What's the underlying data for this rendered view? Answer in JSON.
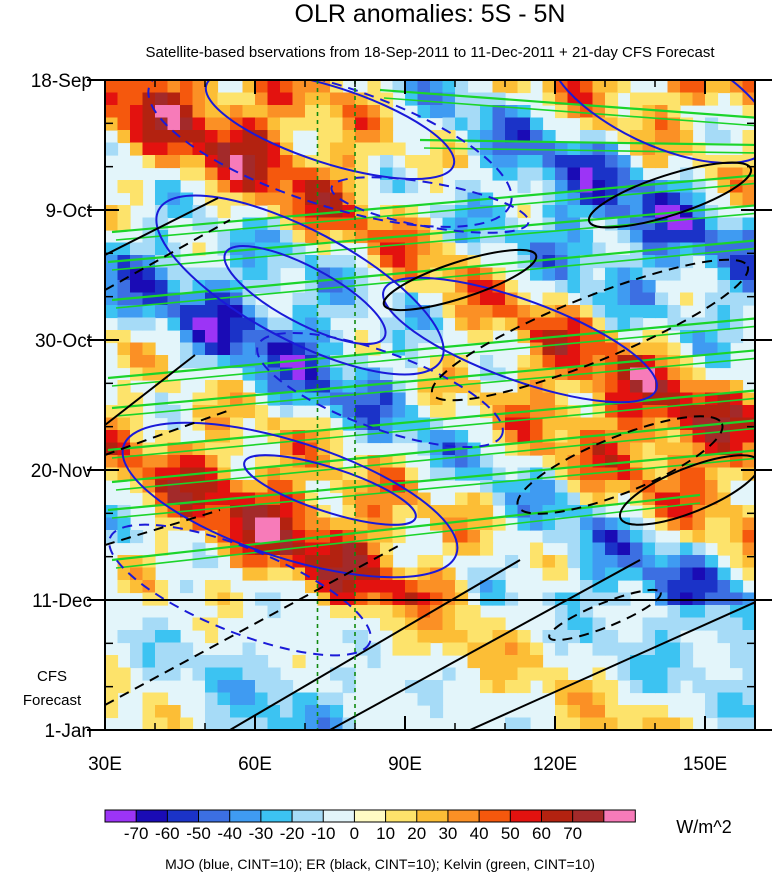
{
  "chart_data": {
    "type": "heatmap",
    "title": "OLR anomalies: 5S - 5N",
    "subtitle": "Satellite-based bservations from 18-Sep-2011 to 11-Dec-2011 + 21-day CFS Forecast",
    "x_ticks": [
      {
        "value": 30,
        "label": "30E"
      },
      {
        "value": 60,
        "label": "60E"
      },
      {
        "value": 90,
        "label": "90E"
      },
      {
        "value": 120,
        "label": "120E"
      },
      {
        "value": 150,
        "label": "150E"
      }
    ],
    "x_range": [
      30,
      160
    ],
    "y_ticks": [
      {
        "value": "2011-09-18",
        "label": "18-Sep"
      },
      {
        "value": "2011-10-09",
        "label": "9-Oct"
      },
      {
        "value": "2011-10-30",
        "label": "30-Oct"
      },
      {
        "value": "2011-11-20",
        "label": "20-Nov"
      },
      {
        "value": "2011-12-11",
        "label": "11-Dec"
      },
      {
        "value": "2012-01-01",
        "label": "1-Jan"
      }
    ],
    "y_range": [
      "2011-09-18",
      "2012-01-01"
    ],
    "forecast_label": [
      "CFS",
      "Forecast"
    ],
    "forecast_start": "2011-12-11",
    "reference_longitudes": [
      72.5,
      80
    ],
    "colorbar": {
      "unit": "W/m^2",
      "labels": [
        "-70",
        "-60",
        "-50",
        "-40",
        "-30",
        "-20",
        "-10",
        "0",
        "10",
        "20",
        "30",
        "40",
        "50",
        "60",
        "70"
      ],
      "colors": [
        "#9c34f6",
        "#1a0bb5",
        "#1b33c8",
        "#3c6fe2",
        "#3f9bf2",
        "#3cc3f2",
        "#a6dbf7",
        "#e3f5fa",
        "#fffbc4",
        "#fde36b",
        "#fcbe36",
        "#fb9025",
        "#f5580d",
        "#e3120f",
        "#b32210",
        "#a32a2a",
        "#f77bb9"
      ]
    },
    "footer": "MJO (blue, CINT=10); ER (black, CINT=10); Kelvin (green, CINT=10)",
    "overlays": [
      {
        "name": "MJO",
        "color": "#1a1ad8"
      },
      {
        "name": "ER",
        "color": "#000000"
      },
      {
        "name": "Kelvin",
        "color": "#1bd42a"
      }
    ],
    "grid": false
  }
}
